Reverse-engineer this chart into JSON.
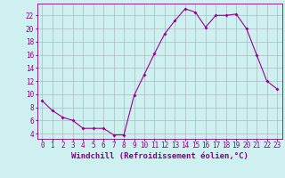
{
  "x": [
    0,
    1,
    2,
    3,
    4,
    5,
    6,
    7,
    8,
    9,
    10,
    11,
    12,
    13,
    14,
    15,
    16,
    17,
    18,
    19,
    20,
    21,
    22,
    23
  ],
  "y": [
    9.0,
    7.5,
    6.5,
    6.0,
    4.8,
    4.8,
    4.8,
    3.8,
    3.8,
    9.8,
    13.0,
    16.2,
    19.2,
    21.2,
    23.0,
    22.5,
    20.2,
    22.0,
    22.0,
    22.2,
    20.0,
    16.0,
    12.0,
    10.8
  ],
  "line_color": "#990099",
  "marker": "D",
  "marker_size": 2.0,
  "xlabel": "Windchill (Refroidissement éolien,°C)",
  "ylabel_ticks": [
    4,
    6,
    8,
    10,
    12,
    14,
    16,
    18,
    20,
    22
  ],
  "ylim": [
    3.2,
    23.8
  ],
  "xlim": [
    -0.5,
    23.5
  ],
  "xticks": [
    0,
    1,
    2,
    3,
    4,
    5,
    6,
    7,
    8,
    9,
    10,
    11,
    12,
    13,
    14,
    15,
    16,
    17,
    18,
    19,
    20,
    21,
    22,
    23
  ],
  "background_color": "#cff0f0",
  "grid_color": "#aabbbb",
  "font_color": "#880088",
  "tick_fontsize": 5.5,
  "xlabel_fontsize": 6.5
}
